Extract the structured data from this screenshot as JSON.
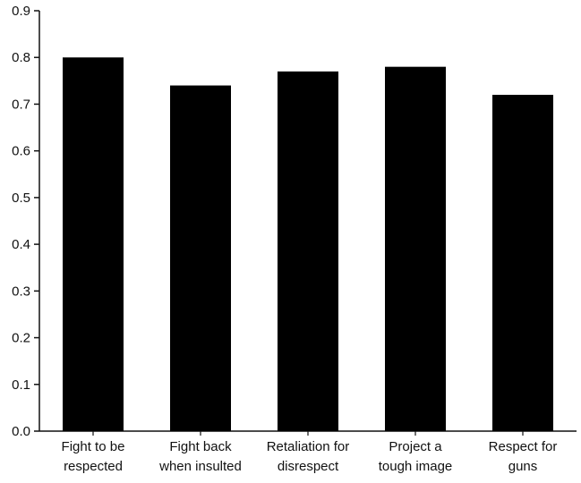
{
  "chart_data": {
    "type": "bar",
    "title": "",
    "xlabel": "",
    "ylabel": "",
    "categories": [
      [
        "Fight to be",
        "respected"
      ],
      [
        "Fight back",
        "when insulted"
      ],
      [
        "Retaliation for",
        "disrespect"
      ],
      [
        "Project a",
        "tough image"
      ],
      [
        "Respect for",
        "guns"
      ]
    ],
    "values": [
      0.8,
      0.74,
      0.77,
      0.78,
      0.72
    ],
    "ylim": [
      0,
      0.9
    ],
    "yticks": [
      "0.0",
      "0.1",
      "0.2",
      "0.3",
      "0.4",
      "0.5",
      "0.6",
      "0.7",
      "0.8",
      "0.9"
    ],
    "grid": false,
    "legend": "none",
    "bar_color": "#000000",
    "axis_color": "#111111"
  }
}
